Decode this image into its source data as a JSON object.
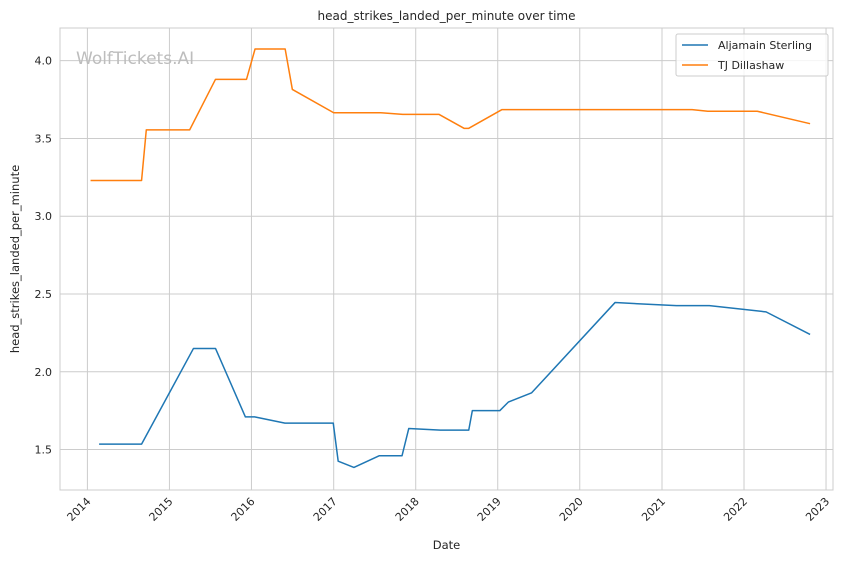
{
  "watermark": "WolfTickets.AI",
  "chart_data": {
    "type": "line",
    "title": "head_strikes_landed_per_minute over time",
    "xlabel": "Date",
    "ylabel": "head_strikes_landed_per_minute",
    "xlim": [
      "2013-09-01",
      "2023-02-01"
    ],
    "ylim": [
      1.24,
      4.21
    ],
    "x_ticks": [
      "2014",
      "2015",
      "2016",
      "2017",
      "2018",
      "2019",
      "2020",
      "2021",
      "2022",
      "2023"
    ],
    "y_ticks": [
      "1.5",
      "2.0",
      "2.5",
      "3.0",
      "3.5",
      "4.0"
    ],
    "grid": true,
    "legend_position": "top-right",
    "series": [
      {
        "name": "Aljamain Sterling",
        "color": "#1f77b4",
        "points": [
          [
            "2014-02-22",
            1.535
          ],
          [
            "2014-08-30",
            1.535
          ],
          [
            "2015-04-18",
            2.15
          ],
          [
            "2015-07-25",
            2.15
          ],
          [
            "2015-12-05",
            1.71
          ],
          [
            "2016-01-15",
            1.71
          ],
          [
            "2016-05-29",
            1.67
          ],
          [
            "2016-12-30",
            1.67
          ],
          [
            "2017-01-21",
            1.425
          ],
          [
            "2017-04-01",
            1.385
          ],
          [
            "2017-07-22",
            1.46
          ],
          [
            "2017-11-01",
            1.46
          ],
          [
            "2017-12-01",
            1.635
          ],
          [
            "2018-04-21",
            1.625
          ],
          [
            "2018-08-25",
            1.625
          ],
          [
            "2018-09-10",
            1.75
          ],
          [
            "2019-01-10",
            1.75
          ],
          [
            "2019-02-17",
            1.805
          ],
          [
            "2019-06-01",
            1.865
          ],
          [
            "2020-06-06",
            2.445
          ],
          [
            "2021-03-06",
            2.425
          ],
          [
            "2021-07-31",
            2.425
          ],
          [
            "2022-04-09",
            2.385
          ],
          [
            "2022-10-22",
            2.24
          ]
        ]
      },
      {
        "name": "TJ Dillashaw",
        "color": "#ff7f0e",
        "points": [
          [
            "2014-01-15",
            3.23
          ],
          [
            "2014-08-30",
            3.23
          ],
          [
            "2014-09-20",
            3.555
          ],
          [
            "2015-04-01",
            3.555
          ],
          [
            "2015-07-25",
            3.88
          ],
          [
            "2015-12-10",
            3.88
          ],
          [
            "2016-01-17",
            4.075
          ],
          [
            "2016-05-30",
            4.075
          ],
          [
            "2016-07-01",
            3.815
          ],
          [
            "2017-01-01",
            3.665
          ],
          [
            "2017-07-29",
            3.665
          ],
          [
            "2017-11-04",
            3.655
          ],
          [
            "2018-04-14",
            3.655
          ],
          [
            "2018-08-04",
            3.565
          ],
          [
            "2018-08-25",
            3.565
          ],
          [
            "2019-01-19",
            3.685
          ],
          [
            "2021-05-15",
            3.685
          ],
          [
            "2021-07-24",
            3.675
          ],
          [
            "2022-03-01",
            3.675
          ],
          [
            "2022-10-22",
            3.595
          ]
        ]
      }
    ]
  }
}
